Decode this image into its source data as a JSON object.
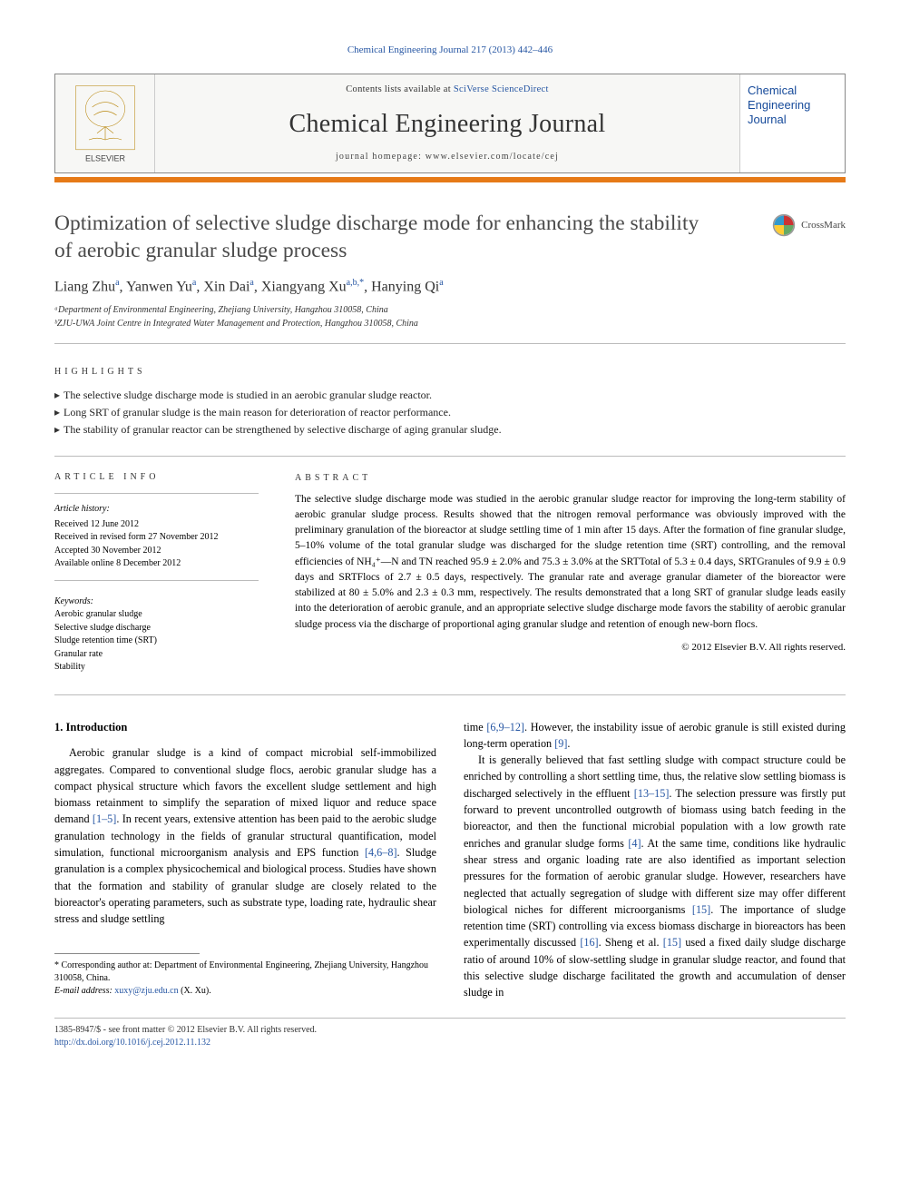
{
  "citation": "Chemical Engineering Journal 217 (2013) 442–446",
  "masthead": {
    "contents_prefix": "Contents lists available at ",
    "contents_link": "SciVerse ScienceDirect",
    "journal": "Chemical Engineering Journal",
    "homepage_prefix": "journal homepage: ",
    "homepage": "www.elsevier.com/locate/cej",
    "publisher_caption": "ELSEVIER",
    "right_label": "Chemical Engineering Journal"
  },
  "colors": {
    "orange": "#e67a17",
    "link": "#2656a3",
    "rule": "#bbbbbb"
  },
  "title": "Optimization of selective sludge discharge mode for enhancing the stability of aerobic granular sludge process",
  "crossmark": "CrossMark",
  "authors_html": "Liang Zhu<sup>a</sup>, Yanwen Yu<sup>a</sup>, Xin Dai<sup>a</sup>, Xiangyang Xu<sup>a,b,*</sup>, Hanying Qi<sup>a</sup>",
  "affiliations": [
    "ᵃDepartment of Environmental Engineering, Zhejiang University, Hangzhou 310058, China",
    "ᵇZJU-UWA Joint Centre in Integrated Water Management and Protection, Hangzhou 310058, China"
  ],
  "highlights_label": "HIGHLIGHTS",
  "highlights": [
    "The selective sludge discharge mode is studied in an aerobic granular sludge reactor.",
    "Long SRT of granular sludge is the main reason for deterioration of reactor performance.",
    "The stability of granular reactor can be strengthened by selective discharge of aging granular sludge."
  ],
  "article_info_label": "ARTICLE INFO",
  "history_label": "Article history:",
  "history": [
    "Received 12 June 2012",
    "Received in revised form 27 November 2012",
    "Accepted 30 November 2012",
    "Available online 8 December 2012"
  ],
  "keywords_label": "Keywords:",
  "keywords": [
    "Aerobic granular sludge",
    "Selective sludge discharge",
    "Sludge retention time (SRT)",
    "Granular rate",
    "Stability"
  ],
  "abstract_label": "ABSTRACT",
  "abstract": "The selective sludge discharge mode was studied in the aerobic granular sludge reactor for improving the long-term stability of aerobic granular sludge process. Results showed that the nitrogen removal performance was obviously improved with the preliminary granulation of the bioreactor at sludge settling time of 1 min after 15 days. After the formation of fine granular sludge, 5–10% volume of the total granular sludge was discharged for the sludge retention time (SRT) controlling, and the removal efficiencies of NH₄⁺—N and TN reached 95.9 ± 2.0% and 75.3 ± 3.0% at the SRTTotal of 5.3 ± 0.4 days, SRTGranules of 9.9 ± 0.9 days and SRTFlocs of 2.7 ± 0.5 days, respectively. The granular rate and average granular diameter of the bioreactor were stabilized at 80 ± 5.0% and 2.3 ± 0.3 mm, respectively. The results demonstrated that a long SRT of granular sludge leads easily into the deterioration of aerobic granule, and an appropriate selective sludge discharge mode favors the stability of aerobic granular sludge process via the discharge of proportional aging granular sludge and retention of enough new-born flocs.",
  "copyright": "© 2012 Elsevier B.V. All rights reserved.",
  "intro_head": "1. Introduction",
  "body_left": "Aerobic granular sludge is a kind of compact microbial self-immobilized aggregates. Compared to conventional sludge flocs, aerobic granular sludge has a compact physical structure which favors the excellent sludge settlement and high biomass retainment to simplify the separation of mixed liquor and reduce space demand [1–5]. In recent years, extensive attention has been paid to the aerobic sludge granulation technology in the fields of granular structural quantification, model simulation, functional microorganism analysis and EPS function [4,6–8]. Sludge granulation is a complex physicochemical and biological process. Studies have shown that the formation and stability of granular sludge are closely related to the bioreactor's operating parameters, such as substrate type, loading rate, hydraulic shear stress and sludge settling",
  "body_right_p1": "time [6,9–12]. However, the instability issue of aerobic granule is still existed during long-term operation [9].",
  "body_right_p2": "It is generally believed that fast settling sludge with compact structure could be enriched by controlling a short settling time, thus, the relative slow settling biomass is discharged selectively in the effluent [13–15]. The selection pressure was firstly put forward to prevent uncontrolled outgrowth of biomass using batch feeding in the bioreactor, and then the functional microbial population with a low growth rate enriches and granular sludge forms [4]. At the same time, conditions like hydraulic shear stress and organic loading rate are also identified as important selection pressures for the formation of aerobic granular sludge. However, researchers have neglected that actually segregation of sludge with different size may offer different biological niches for different microorganisms [15]. The importance of sludge retention time (SRT) controlling via excess biomass discharge in bioreactors has been experimentally discussed [16]. Sheng et al. [15] used a fixed daily sludge discharge ratio of around 10% of slow-settling sludge in granular sludge reactor, and found that this selective sludge discharge facilitated the growth and accumulation of denser sludge in",
  "footnote_corr": "* Corresponding author at: Department of Environmental Engineering, Zhejiang University, Hangzhou 310058, China.",
  "footnote_email_label": "E-mail address:",
  "footnote_email": "xuxy@zju.edu.cn",
  "footnote_email_suffix": "(X. Xu).",
  "footer_left_line1": "1385-8947/$ - see front matter © 2012 Elsevier B.V. All rights reserved.",
  "footer_left_line2": "http://dx.doi.org/10.1016/j.cej.2012.11.132"
}
